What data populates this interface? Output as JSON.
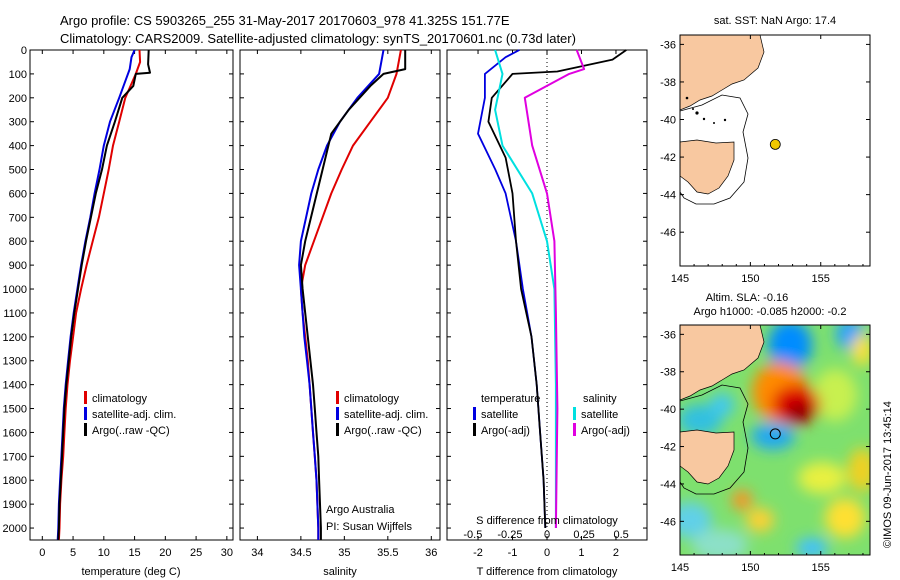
{
  "header": {
    "line1": "Argo profile: CS 5903265_255 31-May-2017 20170603_978 41.325S 151.77E",
    "line2": "Climatology: CARS2009. Satellite-adjusted climatology: synTS_20170601.nc (0.73d later)"
  },
  "depth_ticks": [
    "0",
    "100",
    "200",
    "300",
    "400",
    "500",
    "600",
    "700",
    "800",
    "900",
    "1000",
    "1100",
    "1200",
    "1300",
    "1400",
    "1500",
    "1600",
    "1700",
    "1800",
    "1900",
    "2000"
  ],
  "colors": {
    "climatology": "#e00000",
    "satellite": "#0000e0",
    "argo": "#000000",
    "sat_sal": "#00e0e0",
    "argo_sal": "#e000e0",
    "land": "#f8c8a0",
    "marker": "#f0c800"
  },
  "chart_data": [
    {
      "type": "line",
      "xlabel": "temperature (deg C)",
      "xticks": [
        "0",
        "5",
        "10",
        "15",
        "20",
        "25",
        "30"
      ],
      "xlim": [
        -2,
        31
      ],
      "ylim": [
        2050,
        0
      ],
      "legend": [
        "climatology",
        "satellite-adj. clim.",
        "Argo(..raw -QC)"
      ],
      "series": [
        {
          "name": "climatology",
          "points": [
            [
              15.8,
              0
            ],
            [
              15.9,
              50
            ],
            [
              15.2,
              100
            ],
            [
              13.5,
              200
            ],
            [
              12.5,
              300
            ],
            [
              11.5,
              400
            ],
            [
              10.8,
              500
            ],
            [
              10.0,
              600
            ],
            [
              9.2,
              700
            ],
            [
              8.2,
              800
            ],
            [
              7.2,
              900
            ],
            [
              6.3,
              1000
            ],
            [
              5.5,
              1100
            ],
            [
              5.0,
              1200
            ],
            [
              4.5,
              1300
            ],
            [
              4.1,
              1400
            ],
            [
              3.8,
              1500
            ],
            [
              3.6,
              1600
            ],
            [
              3.4,
              1700
            ],
            [
              3.1,
              1800
            ],
            [
              2.9,
              1900
            ],
            [
              2.8,
              2000
            ],
            [
              2.7,
              2050
            ]
          ]
        },
        {
          "name": "satellite-adj. clim.",
          "points": [
            [
              15.0,
              0
            ],
            [
              14.5,
              30
            ],
            [
              14.2,
              80
            ],
            [
              12.5,
              200
            ],
            [
              11.0,
              300
            ],
            [
              10.0,
              400
            ],
            [
              9.3,
              500
            ],
            [
              8.5,
              600
            ],
            [
              7.8,
              700
            ],
            [
              7.0,
              800
            ],
            [
              6.3,
              900
            ],
            [
              5.7,
              1000
            ],
            [
              5.1,
              1100
            ],
            [
              4.6,
              1200
            ],
            [
              4.2,
              1300
            ],
            [
              3.8,
              1400
            ],
            [
              3.5,
              1500
            ],
            [
              3.3,
              1600
            ],
            [
              3.1,
              1700
            ],
            [
              2.9,
              1800
            ],
            [
              2.7,
              1900
            ],
            [
              2.6,
              2000
            ],
            [
              2.5,
              2050
            ]
          ]
        },
        {
          "name": "Argo(..raw -QC)",
          "points": [
            [
              17.3,
              0
            ],
            [
              17.2,
              60
            ],
            [
              17.5,
              95
            ],
            [
              15.2,
              100
            ],
            [
              14.8,
              150
            ],
            [
              13.0,
              200
            ],
            [
              11.8,
              300
            ],
            [
              10.5,
              400
            ],
            [
              9.7,
              500
            ],
            [
              8.7,
              600
            ],
            [
              7.9,
              700
            ],
            [
              7.1,
              800
            ],
            [
              6.4,
              900
            ],
            [
              5.8,
              1000
            ],
            [
              5.2,
              1100
            ],
            [
              4.7,
              1200
            ],
            [
              4.3,
              1300
            ],
            [
              3.9,
              1400
            ],
            [
              3.6,
              1500
            ],
            [
              3.4,
              1600
            ],
            [
              3.2,
              1700
            ],
            [
              3.0,
              1800
            ],
            [
              2.8,
              1900
            ],
            [
              2.7,
              2000
            ],
            [
              2.6,
              2050
            ]
          ]
        }
      ]
    },
    {
      "type": "line",
      "xlabel": "salinity",
      "xticks": [
        "34",
        "34.5",
        "35",
        "35.5",
        "36"
      ],
      "xlim": [
        33.8,
        36.1
      ],
      "ylim": [
        2050,
        0
      ],
      "legend": [
        "climatology",
        "satellite-adj. clim.",
        "Argo(..raw -QC)"
      ],
      "annotation": [
        "Argo Australia",
        "PI: Susan Wijffels"
      ],
      "series": [
        {
          "name": "climatology",
          "points": [
            [
              35.65,
              0
            ],
            [
              35.6,
              100
            ],
            [
              35.5,
              200
            ],
            [
              35.3,
              300
            ],
            [
              35.1,
              400
            ],
            [
              34.97,
              500
            ],
            [
              34.85,
              600
            ],
            [
              34.75,
              700
            ],
            [
              34.65,
              800
            ],
            [
              34.55,
              900
            ],
            [
              34.5,
              1000
            ],
            [
              34.52,
              1100
            ],
            [
              34.55,
              1200
            ],
            [
              34.58,
              1300
            ],
            [
              34.6,
              1400
            ],
            [
              34.62,
              1500
            ],
            [
              34.64,
              1600
            ],
            [
              34.66,
              1700
            ],
            [
              34.68,
              1800
            ],
            [
              34.69,
              1900
            ],
            [
              34.7,
              2000
            ],
            [
              34.7,
              2050
            ]
          ]
        },
        {
          "name": "satellite-adj. clim.",
          "points": [
            [
              35.45,
              0
            ],
            [
              35.4,
              100
            ],
            [
              35.15,
              200
            ],
            [
              34.95,
              300
            ],
            [
              34.8,
              400
            ],
            [
              34.7,
              500
            ],
            [
              34.62,
              600
            ],
            [
              34.56,
              700
            ],
            [
              34.5,
              800
            ],
            [
              34.48,
              900
            ],
            [
              34.5,
              1000
            ],
            [
              34.52,
              1100
            ],
            [
              34.54,
              1200
            ],
            [
              34.57,
              1300
            ],
            [
              34.6,
              1400
            ],
            [
              34.62,
              1500
            ],
            [
              34.64,
              1600
            ],
            [
              34.66,
              1700
            ],
            [
              34.68,
              1800
            ],
            [
              34.69,
              1900
            ],
            [
              34.7,
              2000
            ],
            [
              34.7,
              2050
            ]
          ]
        },
        {
          "name": "Argo(..raw -QC)",
          "points": [
            [
              35.7,
              0
            ],
            [
              35.7,
              80
            ],
            [
              35.45,
              100
            ],
            [
              35.3,
              150
            ],
            [
              35.05,
              250
            ],
            [
              34.85,
              350
            ],
            [
              34.75,
              500
            ],
            [
              34.65,
              650
            ],
            [
              34.55,
              800
            ],
            [
              34.5,
              900
            ],
            [
              34.52,
              1000
            ],
            [
              34.55,
              1100
            ],
            [
              34.58,
              1200
            ],
            [
              34.61,
              1300
            ],
            [
              34.64,
              1400
            ],
            [
              34.66,
              1500
            ],
            [
              34.68,
              1600
            ],
            [
              34.7,
              1700
            ],
            [
              34.71,
              1800
            ],
            [
              34.72,
              1900
            ],
            [
              34.73,
              2000
            ],
            [
              34.73,
              2050
            ]
          ]
        }
      ]
    },
    {
      "type": "line",
      "xlabel": "T difference from climatology",
      "x2label": "S difference from climatology",
      "xticks": [
        "-2",
        "-1",
        "0",
        "1",
        "2"
      ],
      "x2ticks": [
        "-0.5",
        "-0.25",
        "0",
        "0.25",
        "0.5"
      ],
      "xlim": [
        -2.9,
        2.9
      ],
      "ylim": [
        2050,
        0
      ],
      "legend_temperature_title": "temperature",
      "legend_salinity_title": "salinity",
      "legend": [
        "satellite",
        "Argo(-adj)",
        "satellite",
        "Argo(-adj)"
      ],
      "series": [
        {
          "name": "satellite",
          "points": [
            [
              -0.8,
              0
            ],
            [
              -1.2,
              30
            ],
            [
              -1.8,
              100
            ],
            [
              -1.8,
              200
            ],
            [
              -2.0,
              350
            ],
            [
              -1.5,
              500
            ],
            [
              -1.2,
              600
            ],
            [
              -0.9,
              800
            ],
            [
              -0.7,
              1000
            ],
            [
              -0.45,
              1200
            ],
            [
              -0.3,
              1400
            ],
            [
              -0.2,
              1600
            ],
            [
              -0.1,
              1800
            ],
            [
              -0.05,
              2000
            ]
          ]
        },
        {
          "name": "Argo(-adj)",
          "points": [
            [
              2.3,
              0
            ],
            [
              1.9,
              40
            ],
            [
              0.3,
              90
            ],
            [
              -1.0,
              100
            ],
            [
              -1.6,
              200
            ],
            [
              -1.7,
              300
            ],
            [
              -1.2,
              450
            ],
            [
              -1.0,
              600
            ],
            [
              -0.9,
              800
            ],
            [
              -0.75,
              1000
            ],
            [
              -0.45,
              1200
            ],
            [
              -0.3,
              1400
            ],
            [
              -0.2,
              1600
            ],
            [
              -0.1,
              1800
            ],
            [
              -0.05,
              2000
            ]
          ]
        },
        {
          "name": "satellite",
          "points": [
            [
              -0.35,
              0
            ],
            [
              -0.3,
              100
            ],
            [
              -0.35,
              250
            ],
            [
              -0.3,
              400
            ],
            [
              -0.1,
              600
            ],
            [
              0.0,
              800
            ],
            [
              0.05,
              1000
            ],
            [
              0.06,
              1400
            ],
            [
              0.06,
              2000
            ]
          ]
        },
        {
          "name": "Argo(-adj)",
          "points": [
            [
              0.2,
              0
            ],
            [
              0.25,
              80
            ],
            [
              0.15,
              100
            ],
            [
              -0.15,
              200
            ],
            [
              -0.1,
              400
            ],
            [
              0.0,
              600
            ],
            [
              0.05,
              800
            ],
            [
              0.06,
              1100
            ],
            [
              0.07,
              1500
            ],
            [
              0.06,
              2000
            ]
          ]
        }
      ]
    },
    {
      "type": "map",
      "title": "sat. SST: NaN Argo: 17.4",
      "xticks": [
        "145",
        "150",
        "155"
      ],
      "yticks": [
        "-36",
        "-38",
        "-40",
        "-42",
        "-44",
        "-46"
      ],
      "xlim": [
        145,
        158.5
      ],
      "ylim": [
        -35.5,
        -47.8
      ],
      "marker": {
        "lon": 151.77,
        "lat": -41.325
      }
    },
    {
      "type": "heatmap",
      "title": "Altim. SLA: -0.16",
      "subtitle": "Argo h1000: -0.085 h2000: -0.2",
      "xticks": [
        "145",
        "150",
        "155"
      ],
      "yticks": [
        "-36",
        "-38",
        "-40",
        "-42",
        "-44",
        "-46"
      ],
      "xlim": [
        145,
        158.5
      ],
      "ylim": [
        -35.5,
        -47.8
      ],
      "marker": {
        "lon": 151.77,
        "lat": -41.325
      }
    }
  ],
  "side_label": "©IMOS 09-Jun-2017 13:45:14"
}
